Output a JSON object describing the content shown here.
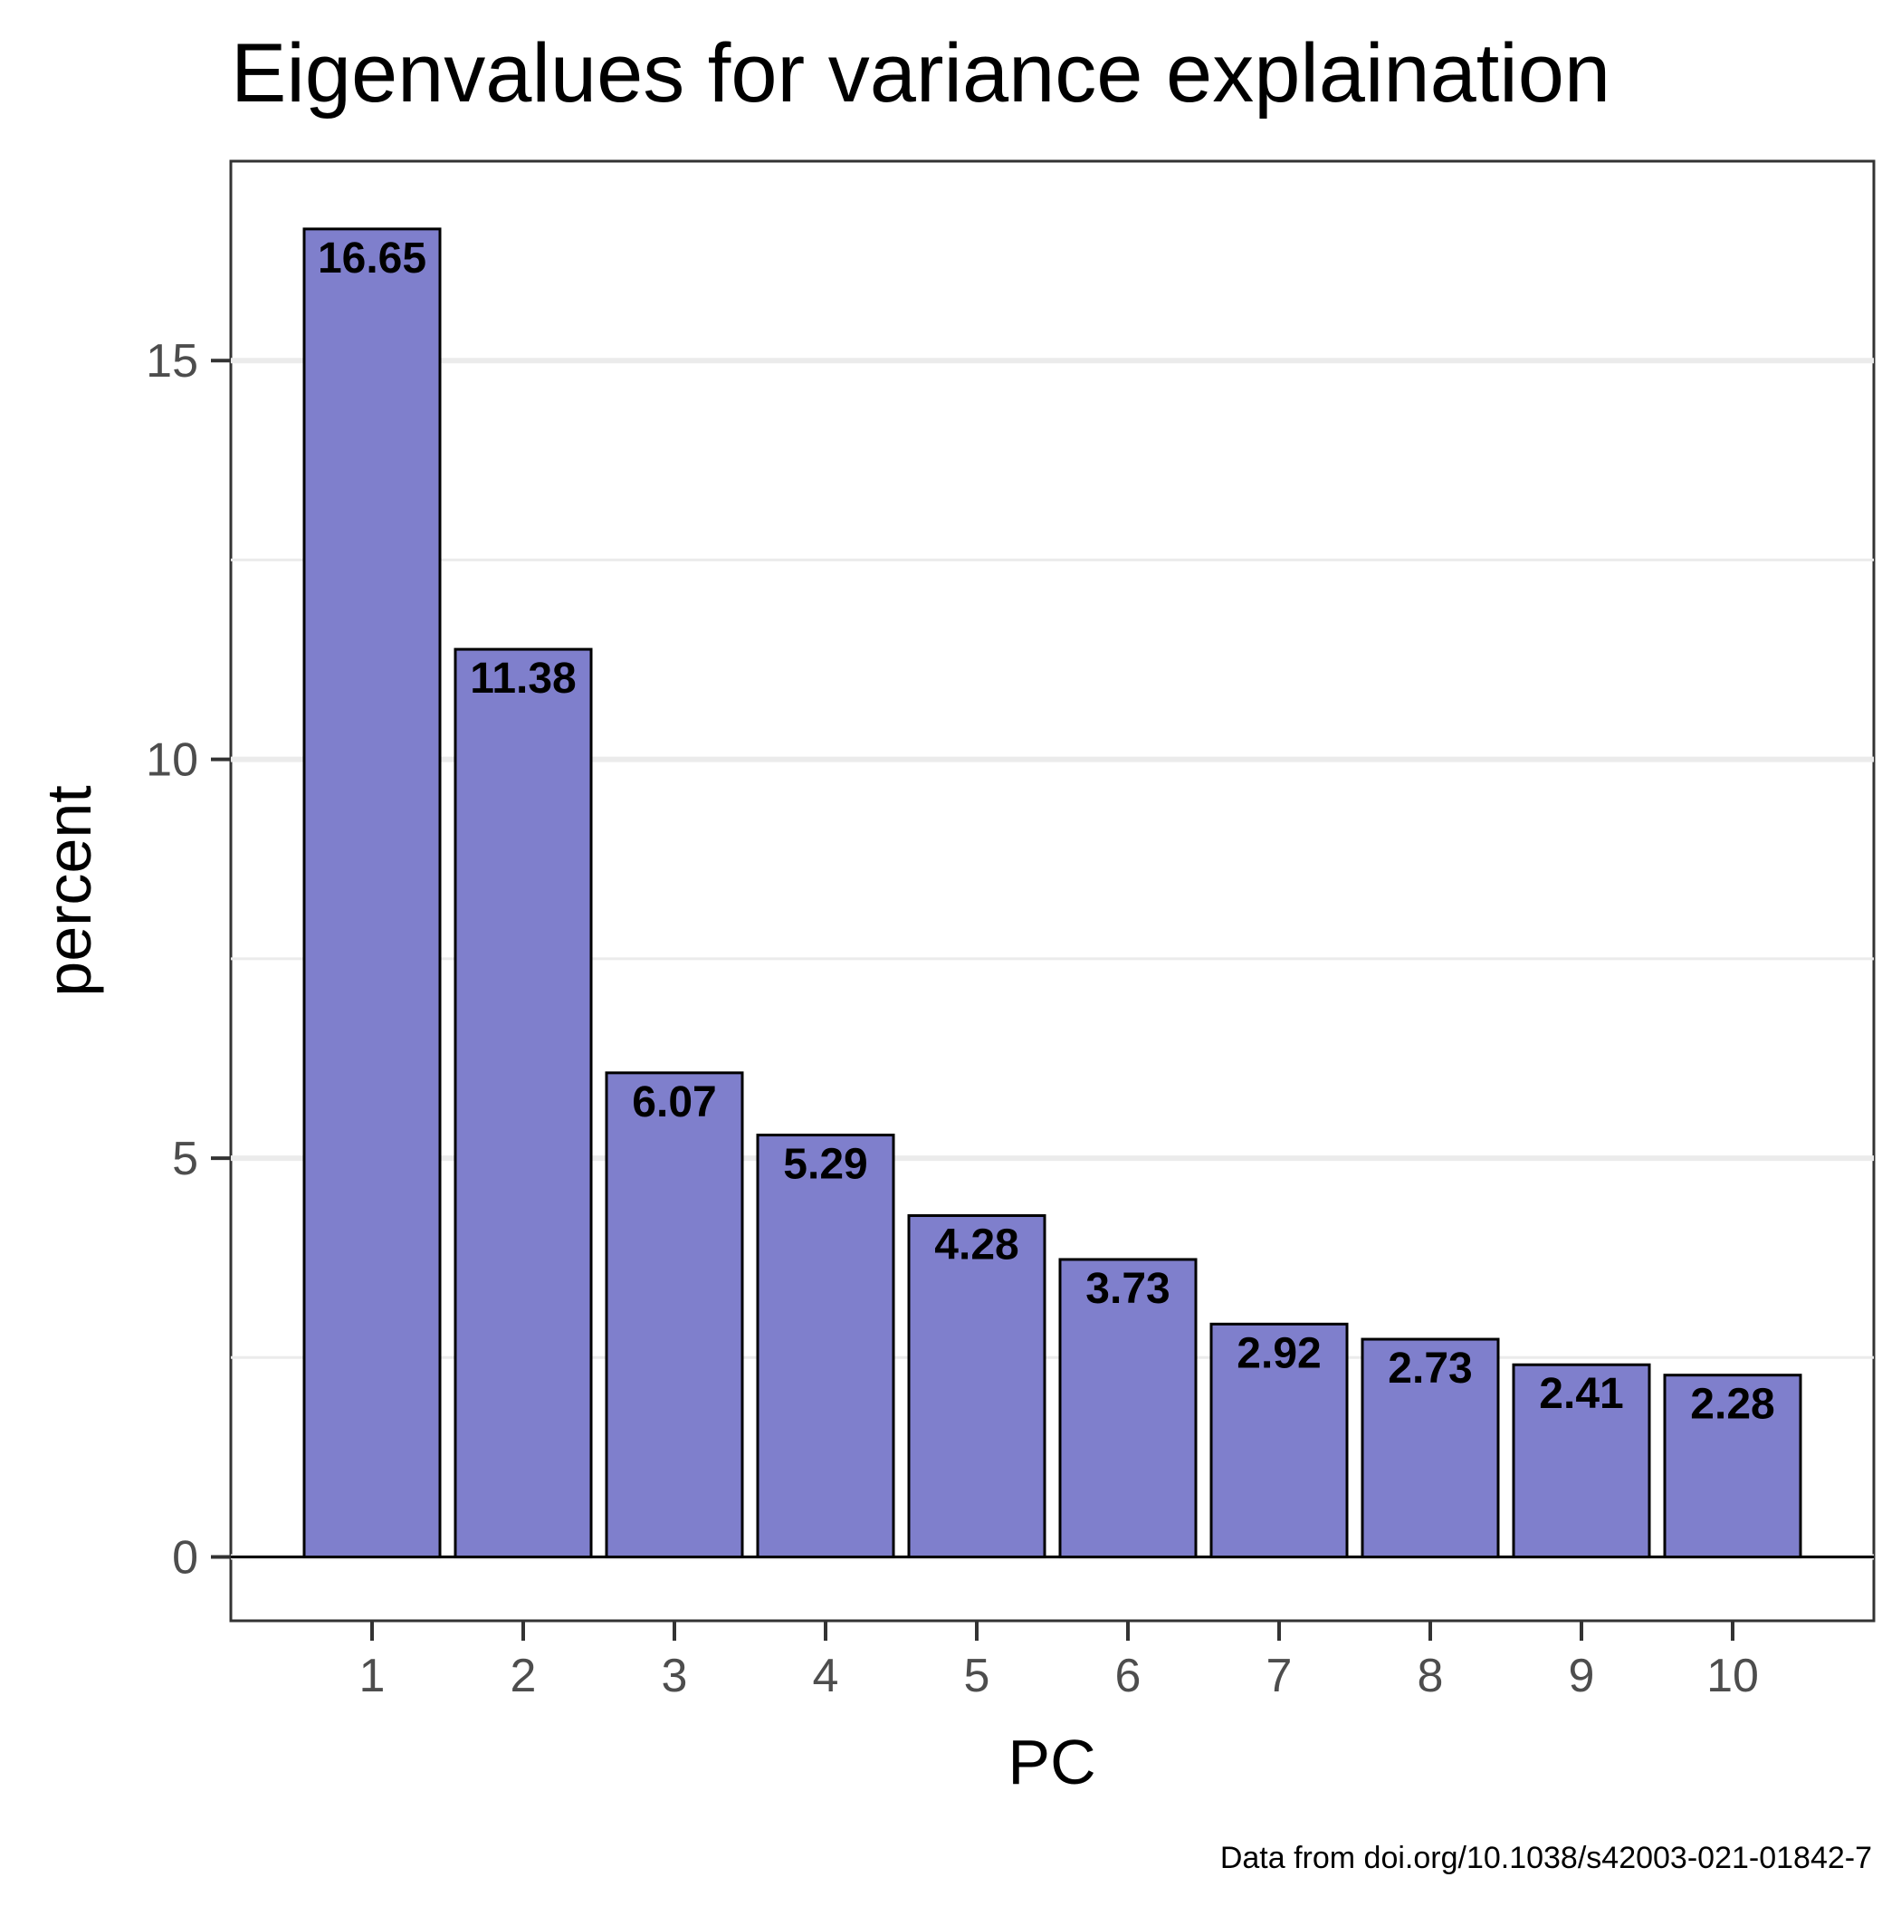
{
  "chart_data": {
    "type": "bar",
    "title": "Eigenvalues for variance explaination",
    "xlabel": "PC",
    "ylabel": "percent",
    "caption": "Data from doi.org/10.1038/s42003-021-01842-7",
    "categories": [
      "1",
      "2",
      "3",
      "4",
      "5",
      "6",
      "7",
      "8",
      "9",
      "10"
    ],
    "values": [
      16.65,
      11.38,
      6.07,
      5.29,
      4.28,
      3.73,
      2.92,
      2.73,
      2.41,
      2.28
    ],
    "value_labels": [
      "16.65",
      "11.38",
      "6.07",
      "5.29",
      "4.28",
      "3.73",
      "2.92",
      "2.73",
      "2.41",
      "2.28"
    ],
    "ylim": [
      -0.8,
      17.5
    ],
    "yticks": [
      0,
      5,
      10,
      15
    ],
    "ytick_labels": [
      "0",
      "5",
      "10",
      "15"
    ],
    "grid": true,
    "legend": "none",
    "colors": {
      "bar_fill": "#7f7fcc",
      "bar_stroke": "#000000",
      "grid": "#ebebeb",
      "panel_border": "#333333",
      "tick_label": "#4d4d4d"
    }
  }
}
